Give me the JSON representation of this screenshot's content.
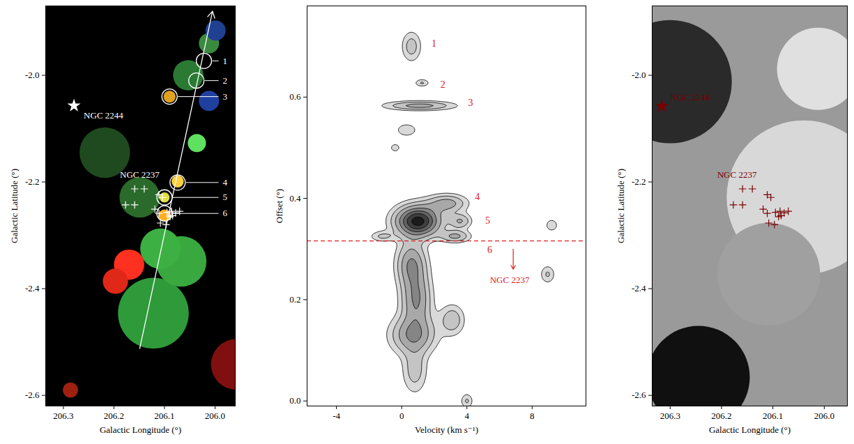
{
  "chart_data": [
    {
      "type": "image",
      "xlabel": "Galactic Longitude (°)",
      "ylabel": "Galactic Latitude (°)",
      "xlim": [
        206.335,
        205.96
      ],
      "ylim": [
        -2.62,
        -1.87
      ],
      "xticks": [
        206.3,
        206.2,
        206.1,
        {
          "value": 206,
          "label": "206.0"
        }
      ],
      "yticks": [
        {
          "value": -2,
          "label": "-2.0"
        },
        -2.2,
        -2.4,
        -2.6
      ],
      "emission": [
        {
          "l": 206.122,
          "b": -2.446,
          "size": 0.07,
          "color": "#2f9a3a"
        },
        {
          "l": 206.067,
          "b": -2.349,
          "size": 0.05,
          "color": "#39a83f"
        },
        {
          "l": 206.108,
          "b": -2.325,
          "size": 0.04,
          "color": "#3cb043"
        },
        {
          "l": 206.036,
          "b": -2.127,
          "size": 0.018,
          "color": "#5fe060"
        },
        {
          "l": 206.053,
          "b": -2.0,
          "size": 0.03,
          "color": "#2a7a34"
        },
        {
          "l": 206.012,
          "b": -1.94,
          "size": 0.02,
          "color": "#3a8a40"
        },
        {
          "l": 206.149,
          "b": -2.229,
          "size": 0.04,
          "color": "#2a6a2a"
        },
        {
          "l": 206.218,
          "b": -2.145,
          "size": 0.05,
          "color": "#1f4a1f"
        },
        {
          "l": 206.17,
          "b": -2.355,
          "size": 0.03,
          "color": "#ff3020"
        },
        {
          "l": 206.197,
          "b": -2.386,
          "size": 0.025,
          "color": "#e02818"
        },
        {
          "l": 206.286,
          "b": -2.59,
          "size": 0.015,
          "color": "#a02010"
        },
        {
          "l": 205.958,
          "b": -2.542,
          "size": 0.05,
          "color": "#801010"
        },
        {
          "l": 206.012,
          "b": -2.048,
          "size": 0.02,
          "color": "#2040a0"
        },
        {
          "l": 205.999,
          "b": -1.916,
          "size": 0.02,
          "color": "#204090"
        },
        {
          "l": 206.09,
          "b": -2.04,
          "size": 0.012,
          "color": "#e0a020"
        },
        {
          "l": 206.074,
          "b": -2.199,
          "size": 0.012,
          "color": "#ffd040"
        },
        {
          "l": 206.1,
          "b": -2.229,
          "size": 0.01,
          "color": "#e0e040"
        },
        {
          "l": 206.1,
          "b": -2.263,
          "size": 0.012,
          "color": "#ffb020"
        }
      ],
      "sources": {
        "color": "#ffffff",
        "marker": "circle",
        "points": [
          {
            "label": "1",
            "l": 206.022,
            "b": -1.973
          },
          {
            "label": "2",
            "l": 206.037,
            "b": -2.01
          },
          {
            "label": "3",
            "l": 206.09,
            "b": -2.04
          },
          {
            "label": "4",
            "l": 206.074,
            "b": -2.201
          },
          {
            "label": "5",
            "l": 206.1,
            "b": -2.229
          },
          {
            "label": "6",
            "l": 206.1,
            "b": -2.259
          }
        ]
      },
      "stars": {
        "color": "#ffffff",
        "marker": "plus",
        "points": [
          {
            "l": 206.159,
            "b": -2.213
          },
          {
            "l": 206.14,
            "b": -2.213
          },
          {
            "l": 206.177,
            "b": -2.243
          },
          {
            "l": 206.159,
            "b": -2.243
          },
          {
            "l": 206.111,
            "b": -2.224
          },
          {
            "l": 206.104,
            "b": -2.229
          },
          {
            "l": 206.119,
            "b": -2.251
          },
          {
            "l": 206.111,
            "b": -2.259
          },
          {
            "l": 206.095,
            "b": -2.257
          },
          {
            "l": 206.086,
            "b": -2.255
          },
          {
            "l": 206.078,
            "b": -2.258
          },
          {
            "l": 206.07,
            "b": -2.255
          },
          {
            "l": 206.089,
            "b": -2.265
          },
          {
            "l": 206.108,
            "b": -2.277
          },
          {
            "l": 206.097,
            "b": -2.28
          },
          {
            "l": 206.084,
            "b": -2.263
          }
        ]
      },
      "clusters": [
        {
          "name": "NGC 2244",
          "l": 206.279,
          "b": -2.057,
          "marker": "star",
          "color": "#ffffff"
        },
        {
          "name": "NGC 2237",
          "l": 206.149,
          "b": -2.187,
          "color": "#ffffff"
        }
      ],
      "arrow": {
        "color": "#ffffff",
        "from": {
          "l": 206.149,
          "b": -2.512
        },
        "to": {
          "l": 206.005,
          "b": -1.88
        }
      }
    },
    {
      "type": "contour",
      "xlabel": "Velocity (km s⁻¹)",
      "ylabel": "Offset (°)",
      "xlim": [
        -5.8,
        11.3
      ],
      "ylim": [
        -0.01,
        0.78
      ],
      "xticks": [
        -4,
        0,
        4,
        8
      ],
      "yticks": [
        {
          "value": 0,
          "label": "0.0"
        },
        0.2,
        0.4,
        0.6
      ],
      "levels": [
        0.6,
        1.2,
        2,
        3,
        4,
        5,
        6
      ],
      "components": [
        {
          "velocity": 0.6,
          "offset": 0.7,
          "velocity_width": 0.4,
          "offset_width": 0.02,
          "peak": 1.6
        },
        {
          "velocity": 1.25,
          "offset": 0.628,
          "velocity_width": 0.3,
          "offset_width": 0.005,
          "peak": 1.3
        },
        {
          "velocity": 1.1,
          "offset": 0.583,
          "velocity_width": 1.4,
          "offset_width": 0.006,
          "peak": 2.4
        },
        {
          "velocity": 0.3,
          "offset": 0.535,
          "velocity_width": 0.5,
          "offset_width": 0.01,
          "peak": 1.0
        },
        {
          "velocity": -0.4,
          "offset": 0.5,
          "velocity_width": 0.3,
          "offset_width": 0.008,
          "peak": 0.8
        },
        {
          "velocity": 1.0,
          "offset": 0.355,
          "velocity_width": 0.9,
          "offset_width": 0.02,
          "peak": 6.5
        },
        {
          "velocity": 2.8,
          "offset": 0.39,
          "velocity_width": 0.8,
          "offset_width": 0.012,
          "peak": 2.4
        },
        {
          "velocity": 3.6,
          "offset": 0.355,
          "velocity_width": 0.45,
          "offset_width": 0.01,
          "peak": 2.0
        },
        {
          "velocity": 3.3,
          "offset": 0.325,
          "velocity_width": 0.6,
          "offset_width": 0.008,
          "peak": 2.2
        },
        {
          "velocity": -1.2,
          "offset": 0.325,
          "velocity_width": 0.5,
          "offset_width": 0.007,
          "peak": 1.3
        },
        {
          "velocity": 0.6,
          "offset": 0.27,
          "velocity_width": 0.6,
          "offset_width": 0.03,
          "peak": 3.0
        },
        {
          "velocity": 0.9,
          "offset": 0.2,
          "velocity_width": 0.6,
          "offset_width": 0.035,
          "peak": 3.0
        },
        {
          "velocity": 0.7,
          "offset": 0.13,
          "velocity_width": 0.9,
          "offset_width": 0.025,
          "peak": 3.0
        },
        {
          "velocity": 3.1,
          "offset": 0.16,
          "velocity_width": 0.5,
          "offset_width": 0.02,
          "peak": 1.8
        },
        {
          "velocity": 0.8,
          "offset": 0.06,
          "velocity_width": 0.5,
          "offset_width": 0.03,
          "peak": 1.6
        },
        {
          "velocity": 4.0,
          "offset": 0.0,
          "velocity_width": 0.25,
          "offset_width": 0.01,
          "peak": 1.3
        },
        {
          "velocity": 9.2,
          "offset": 0.347,
          "velocity_width": 0.25,
          "offset_width": 0.008,
          "peak": 1.2
        },
        {
          "velocity": 8.95,
          "offset": 0.25,
          "velocity_width": 0.3,
          "offset_width": 0.012,
          "peak": 1.3
        }
      ],
      "labels": {
        "color": "#e02020",
        "items": [
          {
            "text": "1",
            "velocity": 1.98,
            "offset": 0.705
          },
          {
            "text": "2",
            "velocity": 2.53,
            "offset": 0.624
          },
          {
            "text": "3",
            "velocity": 4.22,
            "offset": 0.588
          },
          {
            "text": "4",
            "velocity": 4.64,
            "offset": 0.403
          },
          {
            "text": "5",
            "velocity": 5.27,
            "offset": 0.356
          },
          {
            "text": "6",
            "velocity": 5.4,
            "offset": 0.298
          }
        ]
      },
      "reference": {
        "offset": 0.316,
        "color": "#e02020",
        "line_style": "dashed"
      },
      "arrow": {
        "color": "#e02020",
        "from": {
          "velocity": 6.84,
          "offset": 0.3
        },
        "to": {
          "velocity": 6.84,
          "offset": 0.26
        }
      },
      "annotation": {
        "text": "NGC 2237",
        "color": "#e02020",
        "velocity": 6.62,
        "offset": 0.245
      }
    },
    {
      "type": "image",
      "xlabel": "Galactic Longitude (°)",
      "ylabel": "Galactic Latitude (°)",
      "xlim": [
        206.335,
        205.955
      ],
      "ylim": [
        -2.62,
        -1.87
      ],
      "xticks": [
        206.3,
        206.2,
        206.1,
        {
          "value": 206,
          "label": "206.0"
        }
      ],
      "yticks": [
        {
          "value": -2,
          "label": "-2.0"
        },
        -2.2,
        -2.4,
        -2.6
      ],
      "emission": [
        {
          "l": 206.3,
          "b": -2.012,
          "size": 0.12,
          "color": "#2a2a2a"
        },
        {
          "l": 206.04,
          "b": -2.229,
          "size": 0.15,
          "color": "#d8d8d8"
        },
        {
          "l": 206.245,
          "b": -2.566,
          "size": 0.1,
          "color": "#101010"
        },
        {
          "l": 206.108,
          "b": -2.373,
          "size": 0.1,
          "color": "#a0a0a0"
        },
        {
          "l": 206.012,
          "b": -1.988,
          "size": 0.08,
          "color": "#e0e0e0"
        }
      ],
      "stars": {
        "color": "#7a0000",
        "marker": "plus",
        "points": [
          {
            "l": 206.159,
            "b": -2.213
          },
          {
            "l": 206.14,
            "b": -2.213
          },
          {
            "l": 206.177,
            "b": -2.243
          },
          {
            "l": 206.159,
            "b": -2.243
          },
          {
            "l": 206.111,
            "b": -2.224
          },
          {
            "l": 206.104,
            "b": -2.229
          },
          {
            "l": 206.119,
            "b": -2.251
          },
          {
            "l": 206.111,
            "b": -2.259
          },
          {
            "l": 206.095,
            "b": -2.257
          },
          {
            "l": 206.086,
            "b": -2.255
          },
          {
            "l": 206.078,
            "b": -2.258
          },
          {
            "l": 206.07,
            "b": -2.255
          },
          {
            "l": 206.089,
            "b": -2.265
          },
          {
            "l": 206.108,
            "b": -2.277
          },
          {
            "l": 206.097,
            "b": -2.28
          },
          {
            "l": 206.084,
            "b": -2.263
          }
        ]
      },
      "clusters": [
        {
          "name": "NGC 2244",
          "l": 206.316,
          "b": -2.058,
          "marker": "star",
          "color": "#7a0000"
        },
        {
          "name": "NGC 2237",
          "l": 206.17,
          "b": -2.187,
          "color": "#7a0000"
        }
      ]
    }
  ]
}
